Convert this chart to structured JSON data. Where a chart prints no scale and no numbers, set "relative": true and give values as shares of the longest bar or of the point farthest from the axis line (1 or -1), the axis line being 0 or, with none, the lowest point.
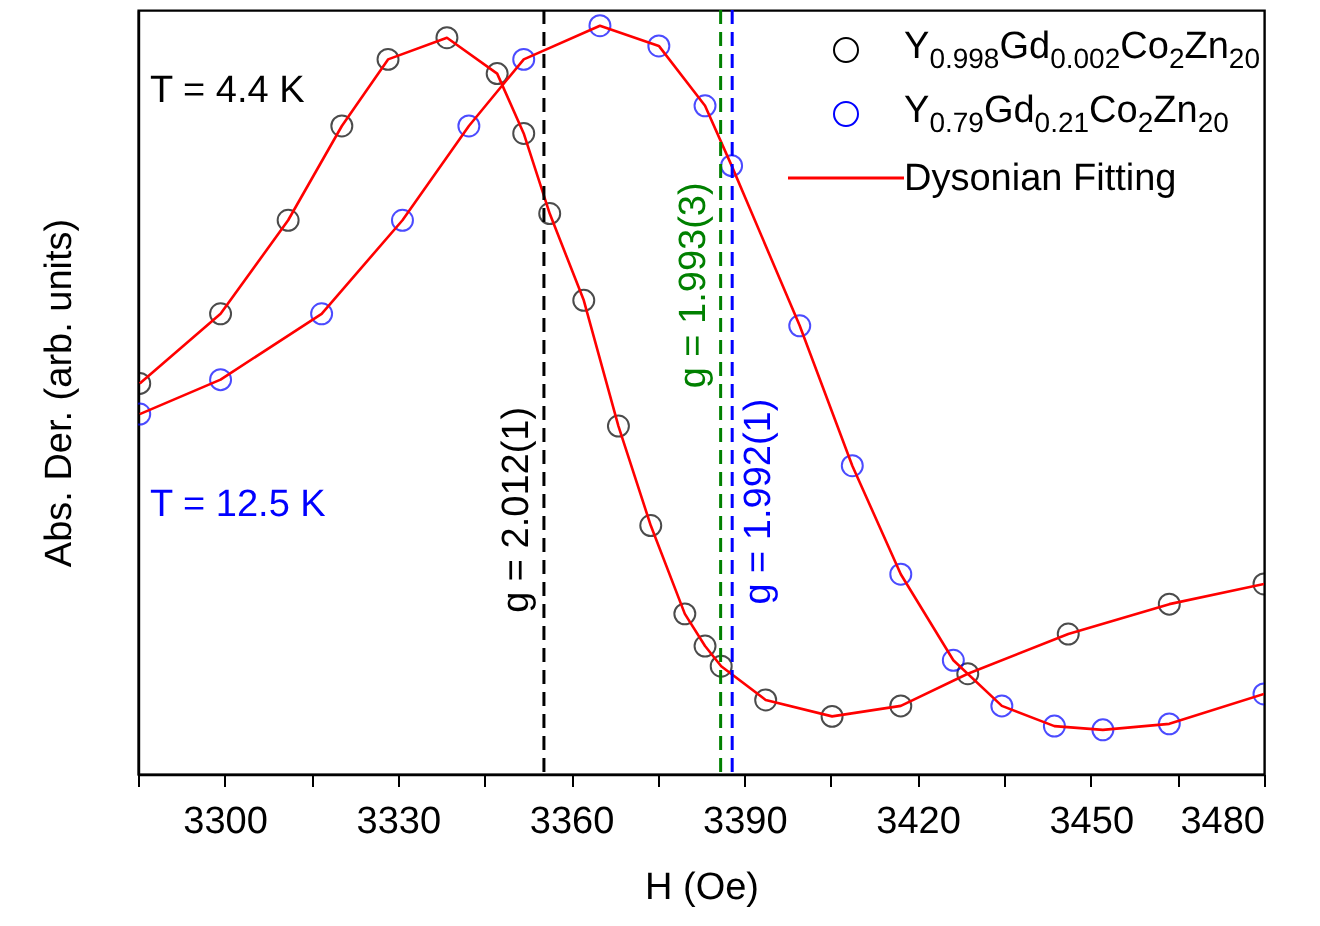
{
  "chart_data": {
    "type": "scatter",
    "xlabel": "H (Oe)",
    "ylabel": "Abs. Der. (arb. units)",
    "relative": true,
    "xlim": [
      3285,
      3480
    ],
    "xticks": [
      {
        "value": 3285,
        "label": null
      },
      3300,
      {
        "value": 3315,
        "label": null
      },
      3330,
      {
        "value": 3345,
        "label": null
      },
      3360,
      {
        "value": 3375,
        "label": null
      },
      3390,
      {
        "value": 3405,
        "label": null
      },
      3420,
      {
        "value": 3435,
        "label": null
      },
      3450,
      {
        "value": 3465,
        "label": null
      },
      3480
    ],
    "legend": "top right",
    "series": [
      {
        "name": "Y$_{0.998}$Gd$_{0.002}$Co$_{2}$Zn$_{20}$",
        "color": "#000000",
        "marker": "circle",
        "x": [
          3285.3,
          3299.3,
          3311,
          3320.3,
          3328.3,
          3338.5,
          3347.2,
          3351.8,
          3356.3,
          3362.2,
          3368.2,
          3373.8,
          3379.7,
          3383.2,
          3386,
          3393.7,
          3405.2,
          3417.1,
          3428.7,
          3446.1,
          3463.6,
          3480
        ],
        "values": [
          0.522,
          0.615,
          0.74,
          0.866,
          0.955,
          0.984,
          0.936,
          0.856,
          0.749,
          0.633,
          0.465,
          0.332,
          0.214,
          0.171,
          0.144,
          0.099,
          0.077,
          0.091,
          0.134,
          0.187,
          0.227,
          0.254
        ]
      },
      {
        "name": "Y$_{0.79}$Gd$_{0.21}$Co$_{2}$Zn$_{20}$",
        "color": "#0000ff",
        "marker": "circle",
        "x": [
          3285.3,
          3299.3,
          3316.8,
          3330.8,
          3342.3,
          3351.8,
          3365,
          3375.2,
          3383.2,
          3387.8,
          3399.6,
          3408.7,
          3417.1,
          3426.2,
          3434.6,
          3443.7,
          3452.1,
          3463.6,
          3480
        ],
        "values": [
          0.481,
          0.527,
          0.615,
          0.74,
          0.866,
          0.955,
          1,
          0.973,
          0.893,
          0.813,
          0.599,
          0.412,
          0.267,
          0.152,
          0.091,
          0.064,
          0.059,
          0.067,
          0.107
        ]
      },
      {
        "name": "Dysonian Fitting",
        "color": "#ff0000",
        "type": "line",
        "x": [
          3285.3,
          3299.3,
          3311,
          3320.3,
          3328.3,
          3338.5,
          3347.2,
          3351.8,
          3356.3,
          3362.2,
          3368.2,
          3373.8,
          3379.7,
          3383.2,
          3386,
          3393.7,
          3405.2,
          3417.1,
          3428.7,
          3446.1,
          3463.6,
          3480
        ],
        "values": [
          0.522,
          0.615,
          0.74,
          0.866,
          0.955,
          0.984,
          0.936,
          0.856,
          0.749,
          0.633,
          0.465,
          0.332,
          0.214,
          0.171,
          0.144,
          0.099,
          0.077,
          0.091,
          0.134,
          0.187,
          0.227,
          0.254
        ]
      },
      {
        "color": "#ff0000",
        "type": "line",
        "x": [
          3285.3,
          3299.3,
          3316.8,
          3330.8,
          3342.3,
          3351.8,
          3365,
          3375.2,
          3383.2,
          3387.8,
          3399.6,
          3408.7,
          3417.1,
          3426.2,
          3434.6,
          3443.7,
          3452.1,
          3463.6,
          3480
        ],
        "values": [
          0.481,
          0.527,
          0.615,
          0.74,
          0.866,
          0.955,
          1,
          0.973,
          0.893,
          0.813,
          0.599,
          0.412,
          0.267,
          0.152,
          0.091,
          0.064,
          0.059,
          0.067,
          0.107
        ]
      }
    ],
    "ref_lines": [
      {
        "axis": "x",
        "value": 3355.3,
        "color": "#000000",
        "line_style": "dashed"
      },
      {
        "axis": "x",
        "value": 3385.9,
        "color": "#008000",
        "line_style": "dashed"
      },
      {
        "axis": "x",
        "value": 3387.9,
        "color": "#0000ff",
        "line_style": "dashed"
      }
    ],
    "annotations": [
      "T = 4.4 K",
      "T = 12.5 K",
      {
        "text": "g = 2.012(1)",
        "x": 3355.3,
        "y": 0.353
      },
      {
        "text": "g = 1.993(3)",
        "x": 3385.9,
        "y": 0.653
      },
      {
        "text": "g = 1.992(1)",
        "x": 3387.9,
        "y": 0.364
      }
    ]
  }
}
